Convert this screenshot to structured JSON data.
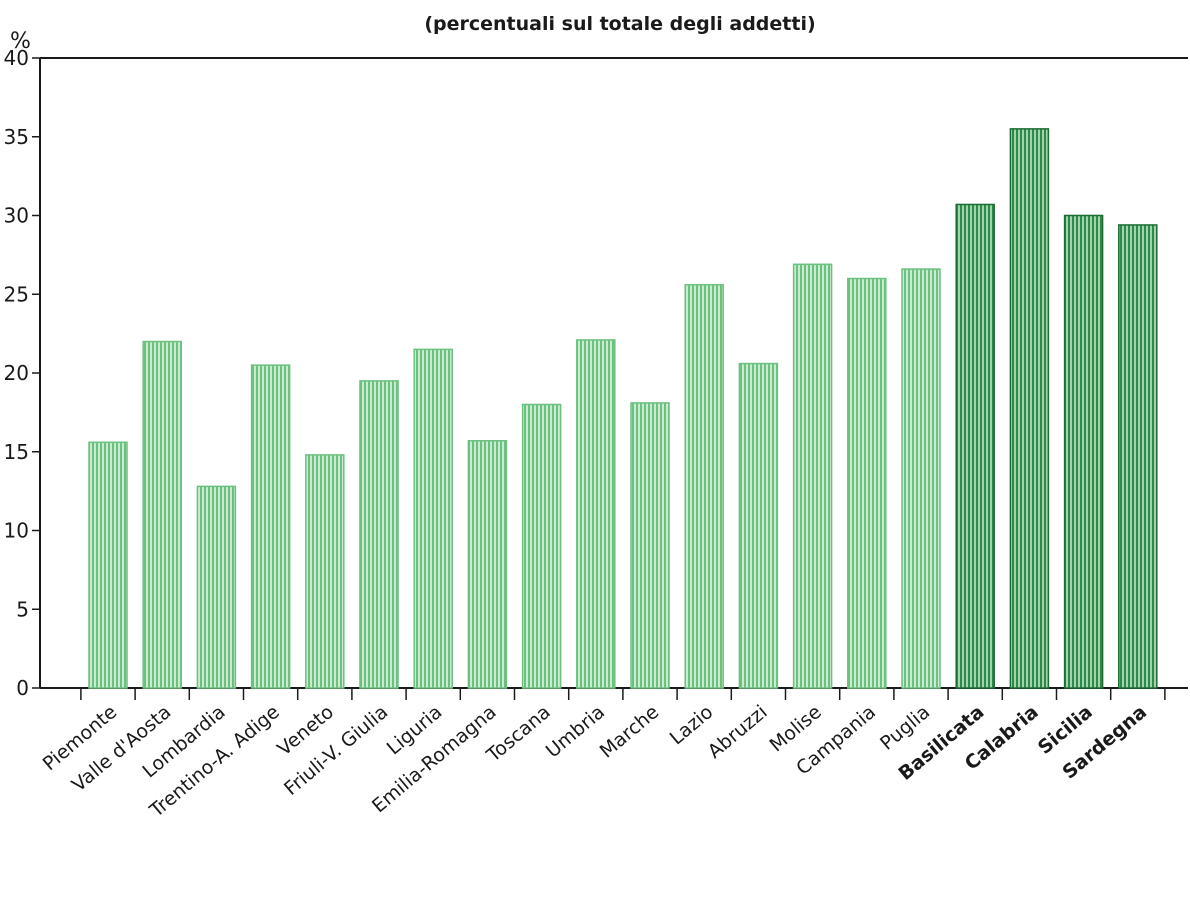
{
  "chart_data": {
    "type": "bar",
    "subtitle": "(percentuali sul totale degli addetti)",
    "unit_label": "%",
    "ylim": [
      0,
      40
    ],
    "yticks": [
      0,
      5,
      10,
      15,
      20,
      25,
      30,
      35,
      40
    ],
    "grid": false,
    "categories": [
      "Piemonte",
      "Valle d'Aosta",
      "Lombardia",
      "Trentino-A. Adige",
      "Veneto",
      "Friuli-V. Giulia",
      "Liguria",
      "Emilia-Romagna",
      "Toscana",
      "Umbria",
      "Marche",
      "Lazio",
      "Abruzzi",
      "Molise",
      "Campania",
      "Puglia",
      "Basilicata",
      "Calabria",
      "Sicilia",
      "Sardegna"
    ],
    "values": [
      15.6,
      22.0,
      12.8,
      20.5,
      14.8,
      19.5,
      21.5,
      15.7,
      18.0,
      22.1,
      18.1,
      25.6,
      20.6,
      26.9,
      26.0,
      26.6,
      30.7,
      35.5,
      30.0,
      29.4
    ],
    "bold_categories": [
      "Basilicata",
      "Calabria",
      "Sicilia",
      "Sardegna"
    ],
    "colors": {
      "bar_light": "#6cc080",
      "bar_dark": "#2f8a4a",
      "bar_edge": "#1d6b35"
    }
  }
}
